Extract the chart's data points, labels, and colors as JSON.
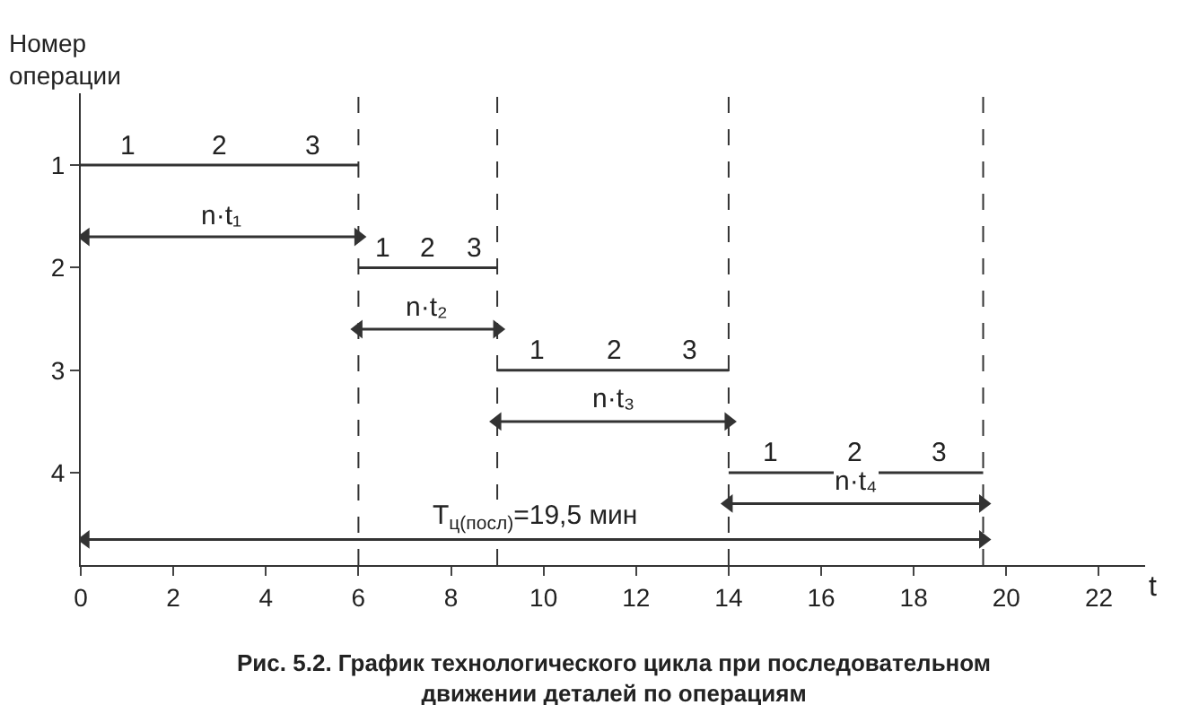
{
  "chart_data": {
    "type": "line",
    "title": "Рис. 5.2. График технологического цикла при последовательном движении деталей по операциям",
    "ylabel": "Номер операции",
    "xlabel": "t",
    "xlim": [
      0,
      23
    ],
    "xticks": [
      0,
      2,
      4,
      6,
      8,
      10,
      12,
      14,
      16,
      18,
      20,
      22
    ],
    "ylim": [
      4.9,
      0.3
    ],
    "yticks": [
      1,
      2,
      3,
      4
    ],
    "series": [
      {
        "color": "#333333",
        "x": [
          0,
          2,
          4,
          6
        ],
        "values": [
          1,
          1,
          1,
          1
        ],
        "marker": "none"
      },
      {
        "color": "#333333",
        "x": [
          6,
          7,
          8,
          9
        ],
        "values": [
          2,
          2,
          2,
          2
        ],
        "marker": "none"
      },
      {
        "color": "#333333",
        "x": [
          9,
          10.7,
          12.3,
          14
        ],
        "values": [
          3,
          3,
          3,
          3
        ],
        "marker": "none"
      },
      {
        "color": "#333333",
        "x": [
          14,
          15.8,
          17.6,
          19.5
        ],
        "values": [
          4,
          4,
          4,
          4
        ],
        "marker": "none"
      },
      {
        "color": "#333333",
        "x": [
          0.1,
          6
        ],
        "values": [
          1.7,
          1.7
        ],
        "marker": "triangle"
      },
      {
        "color": "#333333",
        "x": [
          6,
          9
        ],
        "values": [
          2.6,
          2.6
        ],
        "marker": "triangle"
      },
      {
        "color": "#333333",
        "x": [
          9,
          14
        ],
        "values": [
          3.5,
          3.5
        ],
        "marker": "triangle"
      },
      {
        "color": "#333333",
        "x": [
          14,
          19.5
        ],
        "values": [
          4.3,
          4.3
        ],
        "marker": "triangle"
      },
      {
        "color": "#333333",
        "x": [
          0.1,
          19.5
        ],
        "values": [
          4.65,
          4.65
        ],
        "marker": "triangle"
      }
    ],
    "ref_lines": [
      {
        "axis": "x",
        "value": 6,
        "color": "#333333",
        "line_style": "dashed"
      },
      {
        "axis": "x",
        "value": 9,
        "color": "#333333",
        "line_style": "dashed"
      },
      {
        "axis": "x",
        "value": 14,
        "color": "#333333",
        "line_style": "dashed"
      },
      {
        "axis": "x",
        "value": 19.5,
        "color": "#333333",
        "line_style": "dashed"
      }
    ],
    "annotations": [
      "1",
      "2",
      "3",
      "1",
      "2",
      "3",
      "1",
      "2",
      "3",
      "1",
      "2",
      "3",
      "n·t₁",
      "n·t₂",
      "n·t₃",
      "n·t₄",
      "T$_{ц(посл)}$=19,5 мин"
    ]
  }
}
